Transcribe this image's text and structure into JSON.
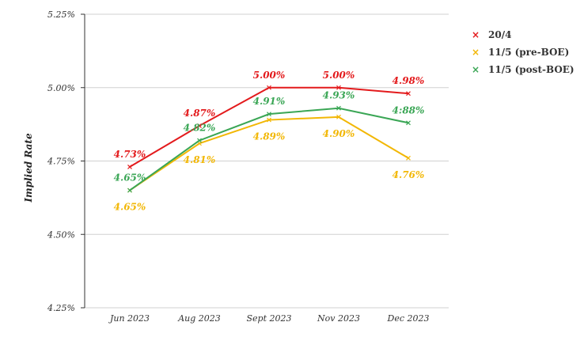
{
  "chart_data": {
    "type": "line",
    "title": "",
    "xlabel": "",
    "ylabel": "Implied Rate",
    "categories": [
      "Jun 2023",
      "Aug 2023",
      "Sept 2023",
      "Nov 2023",
      "Dec 2023"
    ],
    "yticks": [
      "4.25%",
      "4.50%",
      "4.75%",
      "5.00%",
      "5.25%"
    ],
    "ylim": [
      4.25,
      5.25
    ],
    "grid": true,
    "legend_position": "right",
    "series": [
      {
        "name": "20/4",
        "color": "#e31a1c",
        "values": [
          4.73,
          4.87,
          5.0,
          5.0,
          4.98
        ],
        "labels": [
          "4.73%",
          "4.87%",
          "5.00%",
          "5.00%",
          "4.98%"
        ],
        "label_pos": "above"
      },
      {
        "name": "11/5 (pre-BOE)",
        "color": "#f2b705",
        "values": [
          4.65,
          4.81,
          4.89,
          4.9,
          4.76
        ],
        "labels": [
          "4.65%",
          "4.81%",
          "4.89%",
          "4.90%",
          "4.76%"
        ],
        "label_pos": "below"
      },
      {
        "name": "11/5 (post-BOE)",
        "color": "#3aa655",
        "values": [
          4.65,
          4.82,
          4.91,
          4.93,
          4.88
        ],
        "labels": [
          "4.65%",
          "4.82%",
          "4.91%",
          "4.93%",
          "4:88%"
        ],
        "label_pos": "above"
      }
    ]
  },
  "legend": {
    "marker_glyph": "×",
    "items": [
      {
        "label": "20/4",
        "color": "#e31a1c"
      },
      {
        "label": "11/5 (pre-BOE)",
        "color": "#f2b705"
      },
      {
        "label": "11/5 (post-BOE)",
        "color": "#3aa655"
      }
    ]
  }
}
